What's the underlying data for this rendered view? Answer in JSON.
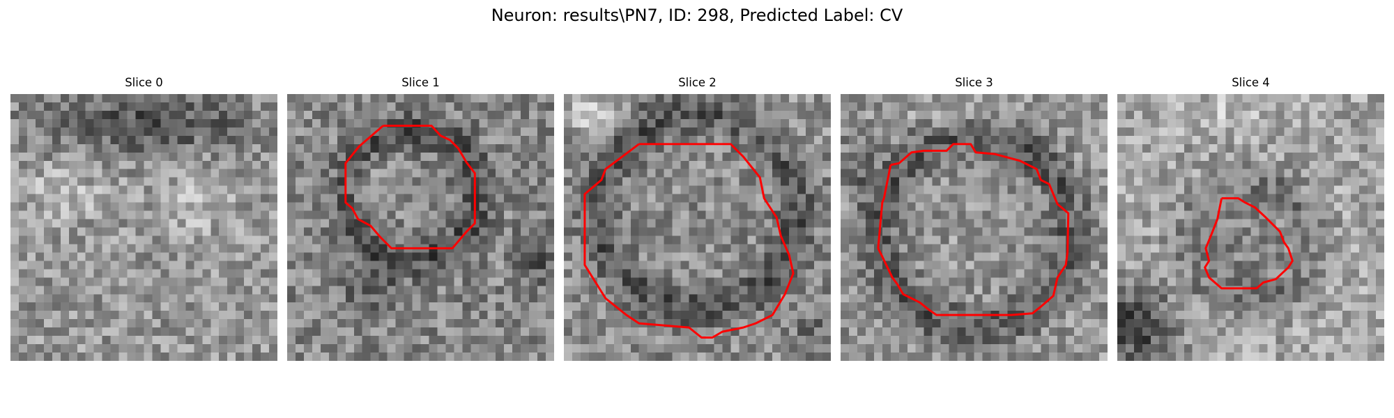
{
  "figure": {
    "title": "Neuron: results\\PN7, ID: 298, Predicted Label: CV"
  },
  "colors": {
    "contour": "#ff0000",
    "background": "#ffffff"
  },
  "panels": [
    {
      "title": "Slice 0",
      "has_contour": false
    },
    {
      "title": "Slice 1",
      "has_contour": true
    },
    {
      "title": "Slice 2",
      "has_contour": true
    },
    {
      "title": "Slice 3",
      "has_contour": true
    },
    {
      "title": "Slice 4",
      "has_contour": true
    }
  ]
}
